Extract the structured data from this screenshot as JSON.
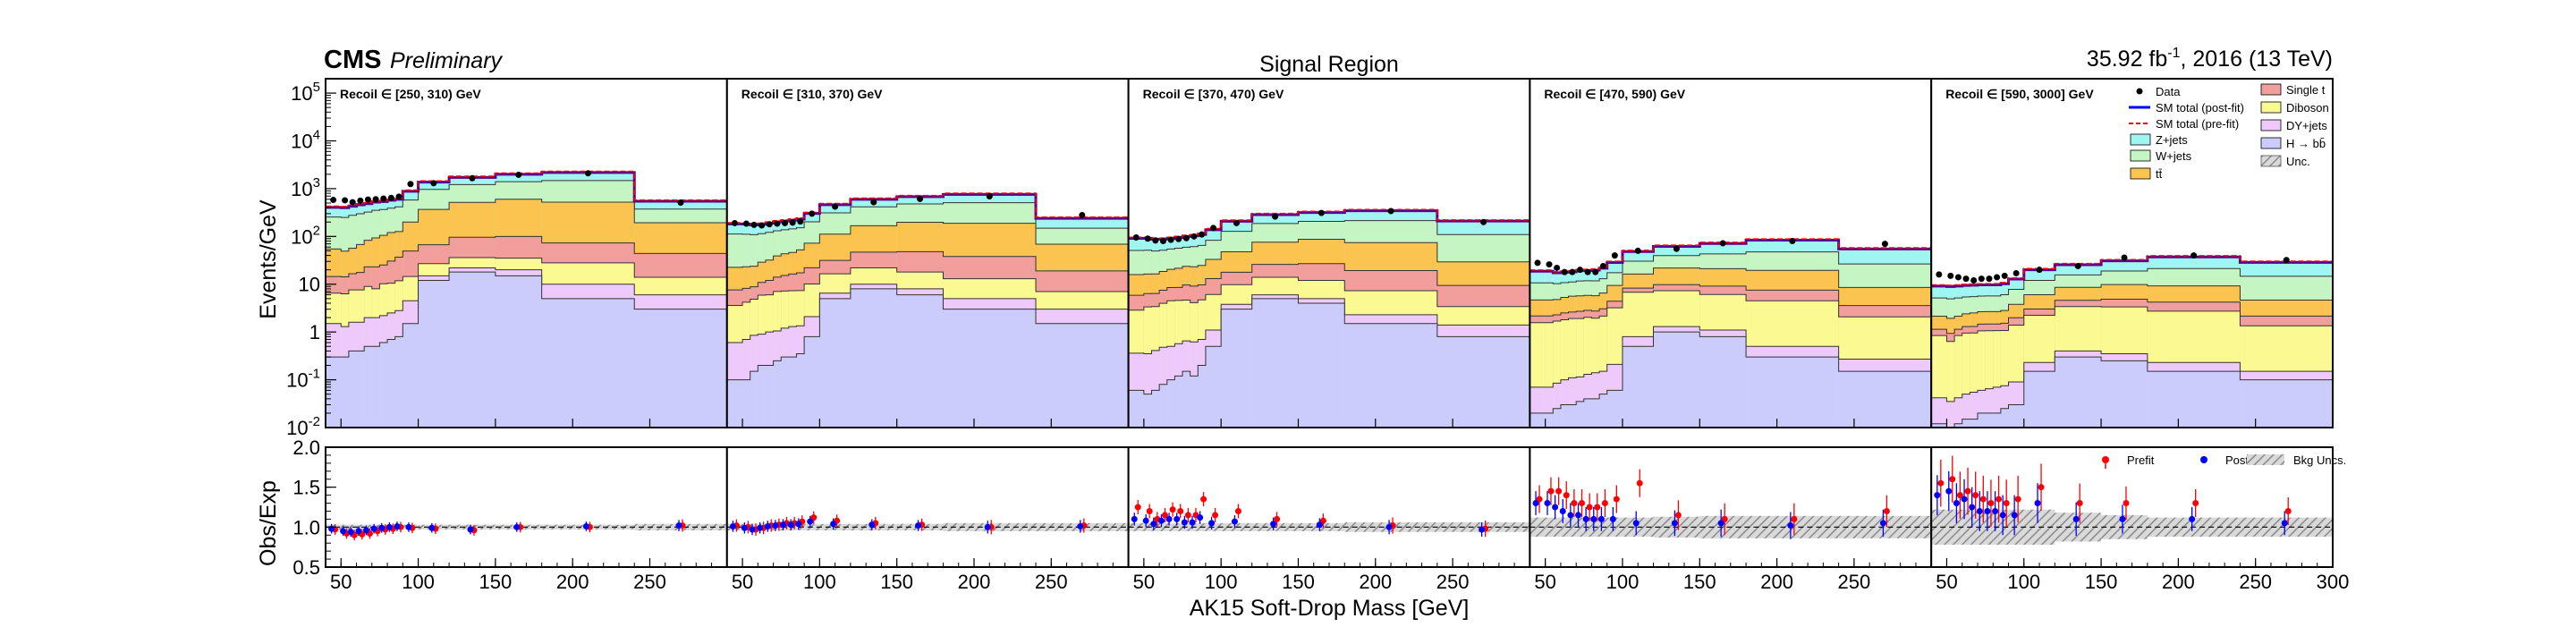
{
  "header": {
    "cms": "CMS",
    "preliminary": "Preliminary",
    "title": "Signal Region",
    "lumi": "35.92 fb",
    "lumi_sup": "-1",
    "lumi_rest": ", 2016 (13 TeV)"
  },
  "axes": {
    "ylabel_top": "Events/GeV",
    "ylabel_bottom": "Obs/Exp",
    "xlabel": "AK15 Soft-Drop Mass [GeV]",
    "x_ticks": [
      "50",
      "100",
      "150",
      "200",
      "250",
      "300"
    ],
    "y_ticks_top": [
      {
        "base": "10",
        "exp": "-2"
      },
      {
        "base": "10",
        "exp": "-1"
      },
      {
        "base": "1",
        "exp": ""
      },
      {
        "base": "10",
        "exp": ""
      },
      {
        "base": "10",
        "exp": "2"
      },
      {
        "base": "10",
        "exp": "3"
      },
      {
        "base": "10",
        "exp": "4"
      },
      {
        "base": "10",
        "exp": "5"
      }
    ],
    "y_ticks_bottom": [
      "0.5",
      "1.0",
      "1.5",
      "2.0"
    ]
  },
  "legend_top": {
    "col1": [
      "Data",
      "SM total (post-fit)",
      "SM total (pre-fit)",
      "Z+jets",
      "W+jets",
      "tt̄"
    ],
    "col2": [
      "Single t",
      "Diboson",
      "DY+jets",
      "H → bb̄",
      "Unc."
    ]
  },
  "legend_bottom": {
    "prefit": "Prefit",
    "postfit": "Postfit",
    "unc": "Bkg Uncs."
  },
  "colors": {
    "zjets": "#9ff5f0",
    "wjets": "#c4f5c2",
    "ttbar": "#fbc34f",
    "singlet": "#f29e9c",
    "diboson": "#fbfa92",
    "dyjets": "#eecafc",
    "hbb": "#ccccfc",
    "postfit": "#0000ff",
    "prefit": "#ff0000",
    "outline": "#5a008c"
  },
  "chart_data": {
    "type": "bar",
    "stacked": true,
    "log_y": true,
    "ylim_top": [
      0.01,
      200000
    ],
    "ylim_ratio": [
      0.5,
      2.0
    ],
    "xlim": [
      40,
      300
    ],
    "bin_edges": [
      40,
      50,
      55,
      60,
      65,
      70,
      75,
      80,
      85,
      90,
      100,
      120,
      150,
      180,
      240,
      300
    ],
    "regions": [
      {
        "label": "Recoil ∈ [250, 310) GeV",
        "hbb": [
          0.3,
          0.3,
          0.4,
          0.4,
          0.5,
          0.5,
          0.6,
          0.7,
          0.8,
          1.5,
          12,
          18,
          15,
          5,
          3
        ],
        "dyjets": [
          1.2,
          1.0,
          1.2,
          1.2,
          1.5,
          1.5,
          1.6,
          1.8,
          2.0,
          3.0,
          3,
          4,
          5,
          5,
          3
        ],
        "diboson": [
          5,
          5,
          6,
          6,
          7,
          6,
          8,
          8,
          9,
          10,
          12,
          14,
          15,
          18,
          8
        ],
        "singlet": [
          8,
          8,
          9,
          10,
          14,
          15,
          15,
          20,
          25,
          35,
          40,
          60,
          65,
          45,
          30
        ],
        "ttbar": [
          40,
          35,
          40,
          50,
          60,
          70,
          80,
          90,
          90,
          150,
          300,
          420,
          500,
          450,
          150
        ],
        "wjets": [
          200,
          200,
          220,
          230,
          240,
          260,
          260,
          270,
          290,
          380,
          600,
          700,
          800,
          950,
          180
        ],
        "zjets": [
          150,
          150,
          150,
          160,
          160,
          170,
          170,
          180,
          180,
          300,
          400,
          500,
          600,
          700,
          170
        ],
        "data": [
          580,
          570,
          520,
          560,
          590,
          600,
          620,
          640,
          680,
          1250,
          1300,
          1650,
          1950,
          2100,
          510
        ],
        "ratio_prefit": [
          0.97,
          0.92,
          0.9,
          0.91,
          0.92,
          0.95,
          0.97,
          0.98,
          1.0,
          0.99,
          0.98,
          0.96,
          1.0,
          1.0,
          1.02
        ],
        "ratio_postfit": [
          0.98,
          0.95,
          0.94,
          0.95,
          0.96,
          0.98,
          0.99,
          1.0,
          1.01,
          1.0,
          0.99,
          0.97,
          1.0,
          1.01,
          1.02
        ],
        "unc": [
          0.03,
          0.03,
          0.03,
          0.03,
          0.03,
          0.03,
          0.03,
          0.03,
          0.03,
          0.03,
          0.03,
          0.03,
          0.03,
          0.03,
          0.04
        ]
      },
      {
        "label": "Recoil ∈ [310, 370) GeV",
        "hbb": [
          0.1,
          0.1,
          0.15,
          0.2,
          0.2,
          0.25,
          0.3,
          0.3,
          0.35,
          0.8,
          5,
          8,
          6,
          3,
          1.5
        ],
        "dyjets": [
          0.5,
          0.6,
          0.7,
          0.7,
          0.8,
          0.8,
          0.9,
          1.0,
          1.0,
          1.3,
          1.5,
          2,
          2,
          2,
          1.5
        ],
        "diboson": [
          3,
          3.5,
          4,
          5,
          5,
          6,
          6,
          6,
          6,
          8,
          10,
          12,
          10,
          8,
          4
        ],
        "singlet": [
          4,
          4,
          4,
          5,
          6,
          7,
          8,
          9,
          10,
          12,
          15,
          25,
          30,
          25,
          12
        ],
        "ttbar": [
          15,
          15,
          15,
          18,
          20,
          25,
          28,
          30,
          35,
          50,
          80,
          120,
          150,
          150,
          50
        ],
        "wjets": [
          90,
          88,
          85,
          85,
          90,
          92,
          95,
          98,
          100,
          130,
          200,
          250,
          280,
          320,
          80
        ],
        "zjets": [
          70,
          70,
          65,
          65,
          68,
          70,
          72,
          75,
          78,
          100,
          150,
          180,
          200,
          250,
          90
        ],
        "data": [
          190,
          185,
          175,
          170,
          180,
          185,
          190,
          195,
          205,
          300,
          420,
          520,
          610,
          690,
          280
        ],
        "ratio_prefit": [
          1.02,
          1.0,
          0.97,
          0.99,
          1.02,
          1.03,
          1.05,
          1.05,
          1.07,
          1.12,
          1.08,
          1.05,
          1.03,
          1.0,
          1.02
        ],
        "ratio_postfit": [
          1.01,
          0.99,
          0.97,
          0.99,
          1.01,
          1.02,
          1.03,
          1.03,
          1.04,
          1.07,
          1.04,
          1.03,
          1.02,
          1.0,
          1.01
        ],
        "unc": [
          0.04,
          0.04,
          0.04,
          0.04,
          0.04,
          0.04,
          0.04,
          0.04,
          0.04,
          0.04,
          0.04,
          0.04,
          0.04,
          0.05,
          0.05
        ]
      },
      {
        "label": "Recoil ∈ [370, 470) GeV",
        "hbb": [
          0.06,
          0.05,
          0.06,
          0.08,
          0.1,
          0.12,
          0.15,
          0.12,
          0.2,
          0.5,
          3,
          5,
          4,
          1.5,
          0.8
        ],
        "dyjets": [
          0.3,
          0.3,
          0.35,
          0.4,
          0.4,
          0.45,
          0.5,
          0.5,
          0.5,
          0.6,
          0.8,
          1,
          1,
          0.8,
          0.6
        ],
        "diboson": [
          2.5,
          3,
          3,
          3.5,
          4,
          4,
          4,
          3.5,
          4,
          5,
          6,
          8,
          7,
          5,
          2
        ],
        "singlet": [
          3,
          3,
          3,
          3.5,
          4,
          4,
          5,
          5,
          5,
          7,
          8,
          12,
          15,
          12,
          6
        ],
        "ttbar": [
          10,
          10,
          10,
          11,
          12,
          13,
          14,
          14,
          15,
          20,
          30,
          50,
          60,
          55,
          20
        ],
        "wjets": [
          35,
          35,
          33,
          33,
          34,
          35,
          36,
          38,
          40,
          50,
          80,
          110,
          120,
          140,
          80
        ],
        "zjets": [
          40,
          40,
          38,
          36,
          36,
          38,
          40,
          42,
          45,
          55,
          80,
          100,
          110,
          130,
          100
        ],
        "data": [
          95,
          90,
          82,
          80,
          85,
          88,
          92,
          100,
          110,
          150,
          190,
          260,
          310,
          340,
          200
        ],
        "ratio_prefit": [
          1.25,
          1.2,
          1.1,
          1.15,
          1.22,
          1.2,
          1.15,
          1.15,
          1.35,
          1.15,
          1.2,
          1.1,
          1.08,
          1.02,
          0.98
        ],
        "ratio_postfit": [
          1.1,
          1.08,
          1.04,
          1.08,
          1.1,
          1.1,
          1.06,
          1.06,
          1.12,
          1.05,
          1.07,
          1.04,
          1.03,
          1.0,
          0.97
        ],
        "unc": [
          0.05,
          0.05,
          0.05,
          0.05,
          0.05,
          0.05,
          0.05,
          0.05,
          0.05,
          0.05,
          0.05,
          0.05,
          0.05,
          0.06,
          0.06
        ]
      },
      {
        "label": "Recoil ∈ [470, 590) GeV",
        "hbb": [
          0.02,
          0.02,
          0.025,
          0.03,
          0.03,
          0.035,
          0.04,
          0.04,
          0.05,
          0.06,
          0.5,
          1.0,
          0.8,
          0.3,
          0.15
        ],
        "dyjets": [
          0.05,
          0.05,
          0.06,
          0.07,
          0.08,
          0.08,
          0.09,
          0.1,
          0.1,
          0.15,
          0.3,
          0.3,
          0.3,
          0.2,
          0.12
        ],
        "diboson": [
          1.5,
          1.5,
          1.6,
          1.7,
          1.8,
          1.8,
          1.9,
          1.8,
          2,
          3,
          6,
          6,
          5,
          4,
          1.8
        ],
        "singlet": [
          0.6,
          0.6,
          0.6,
          0.7,
          0.7,
          0.8,
          0.8,
          0.8,
          0.9,
          1.2,
          1.5,
          2.5,
          3,
          3,
          1.5
        ],
        "ttbar": [
          2.5,
          2.5,
          2.5,
          2.8,
          3,
          3,
          3,
          3,
          3.5,
          5,
          8,
          12,
          12,
          12,
          5
        ],
        "wjets": [
          6,
          6,
          5.5,
          5.5,
          5.5,
          6,
          6,
          6,
          6.5,
          8,
          14,
          18,
          22,
          28,
          18
        ],
        "zjets": [
          8,
          8,
          7,
          7,
          7,
          7.5,
          7.5,
          8,
          8.5,
          11,
          18,
          22,
          28,
          36,
          28
        ],
        "data": [
          28,
          26,
          22,
          18,
          18,
          20,
          18,
          18,
          24,
          40,
          50,
          55,
          72,
          80,
          70
        ],
        "ratio_prefit": [
          1.35,
          1.45,
          1.45,
          1.4,
          1.3,
          1.3,
          1.25,
          1.25,
          1.3,
          1.35,
          1.55,
          1.15,
          1.1,
          1.1,
          1.2
        ],
        "ratio_postfit": [
          1.3,
          1.3,
          1.25,
          1.2,
          1.15,
          1.15,
          1.1,
          1.1,
          1.1,
          1.1,
          1.05,
          1.05,
          1.05,
          1.02,
          1.05
        ],
        "unc": [
          0.12,
          0.12,
          0.12,
          0.12,
          0.12,
          0.12,
          0.12,
          0.12,
          0.12,
          0.12,
          0.12,
          0.13,
          0.14,
          0.14,
          0.14
        ]
      },
      {
        "label": "Recoil ∈ [590, 3000] GeV",
        "hbb": [
          0.012,
          0.01,
          0.012,
          0.015,
          0.015,
          0.02,
          0.02,
          0.02,
          0.025,
          0.03,
          0.15,
          0.3,
          0.25,
          0.15,
          0.1
        ],
        "dyjets": [
          0.03,
          0.025,
          0.03,
          0.035,
          0.04,
          0.04,
          0.045,
          0.05,
          0.05,
          0.06,
          0.08,
          0.1,
          0.1,
          0.08,
          0.05
        ],
        "diboson": [
          0.8,
          0.6,
          0.8,
          0.9,
          0.9,
          1,
          1,
          1,
          1,
          1.3,
          2,
          3,
          3,
          2.5,
          1.2
        ],
        "singlet": [
          0.3,
          0.3,
          0.3,
          0.35,
          0.35,
          0.4,
          0.4,
          0.4,
          0.45,
          0.6,
          0.8,
          1.2,
          1.5,
          1.5,
          0.8
        ],
        "ttbar": [
          1.0,
          1.0,
          1.0,
          1.1,
          1.2,
          1.2,
          1.2,
          1.2,
          1.3,
          1.8,
          3,
          4,
          5,
          5,
          2.5
        ],
        "wjets": [
          3,
          3,
          3,
          3,
          3,
          3,
          3,
          3,
          3.2,
          4,
          6,
          7,
          9,
          12,
          10
        ],
        "zjets": [
          4,
          4,
          4,
          4,
          4,
          4,
          4,
          4,
          4.2,
          5,
          8,
          10,
          12,
          16,
          14
        ],
        "data": [
          16,
          15,
          14,
          13,
          12,
          13,
          13,
          14,
          15,
          17,
          20,
          24,
          36,
          40,
          32
        ],
        "ratio_prefit": [
          1.55,
          1.6,
          1.4,
          1.45,
          1.4,
          1.35,
          1.3,
          1.35,
          1.3,
          1.35,
          1.5,
          1.3,
          1.3,
          1.3,
          1.2
        ],
        "ratio_postfit": [
          1.4,
          1.45,
          1.3,
          1.35,
          1.25,
          1.2,
          1.2,
          1.2,
          1.15,
          1.15,
          1.3,
          1.1,
          1.1,
          1.1,
          1.05
        ],
        "unc": [
          0.22,
          0.22,
          0.22,
          0.22,
          0.22,
          0.22,
          0.22,
          0.22,
          0.22,
          0.22,
          0.22,
          0.18,
          0.15,
          0.12,
          0.12
        ]
      }
    ]
  }
}
